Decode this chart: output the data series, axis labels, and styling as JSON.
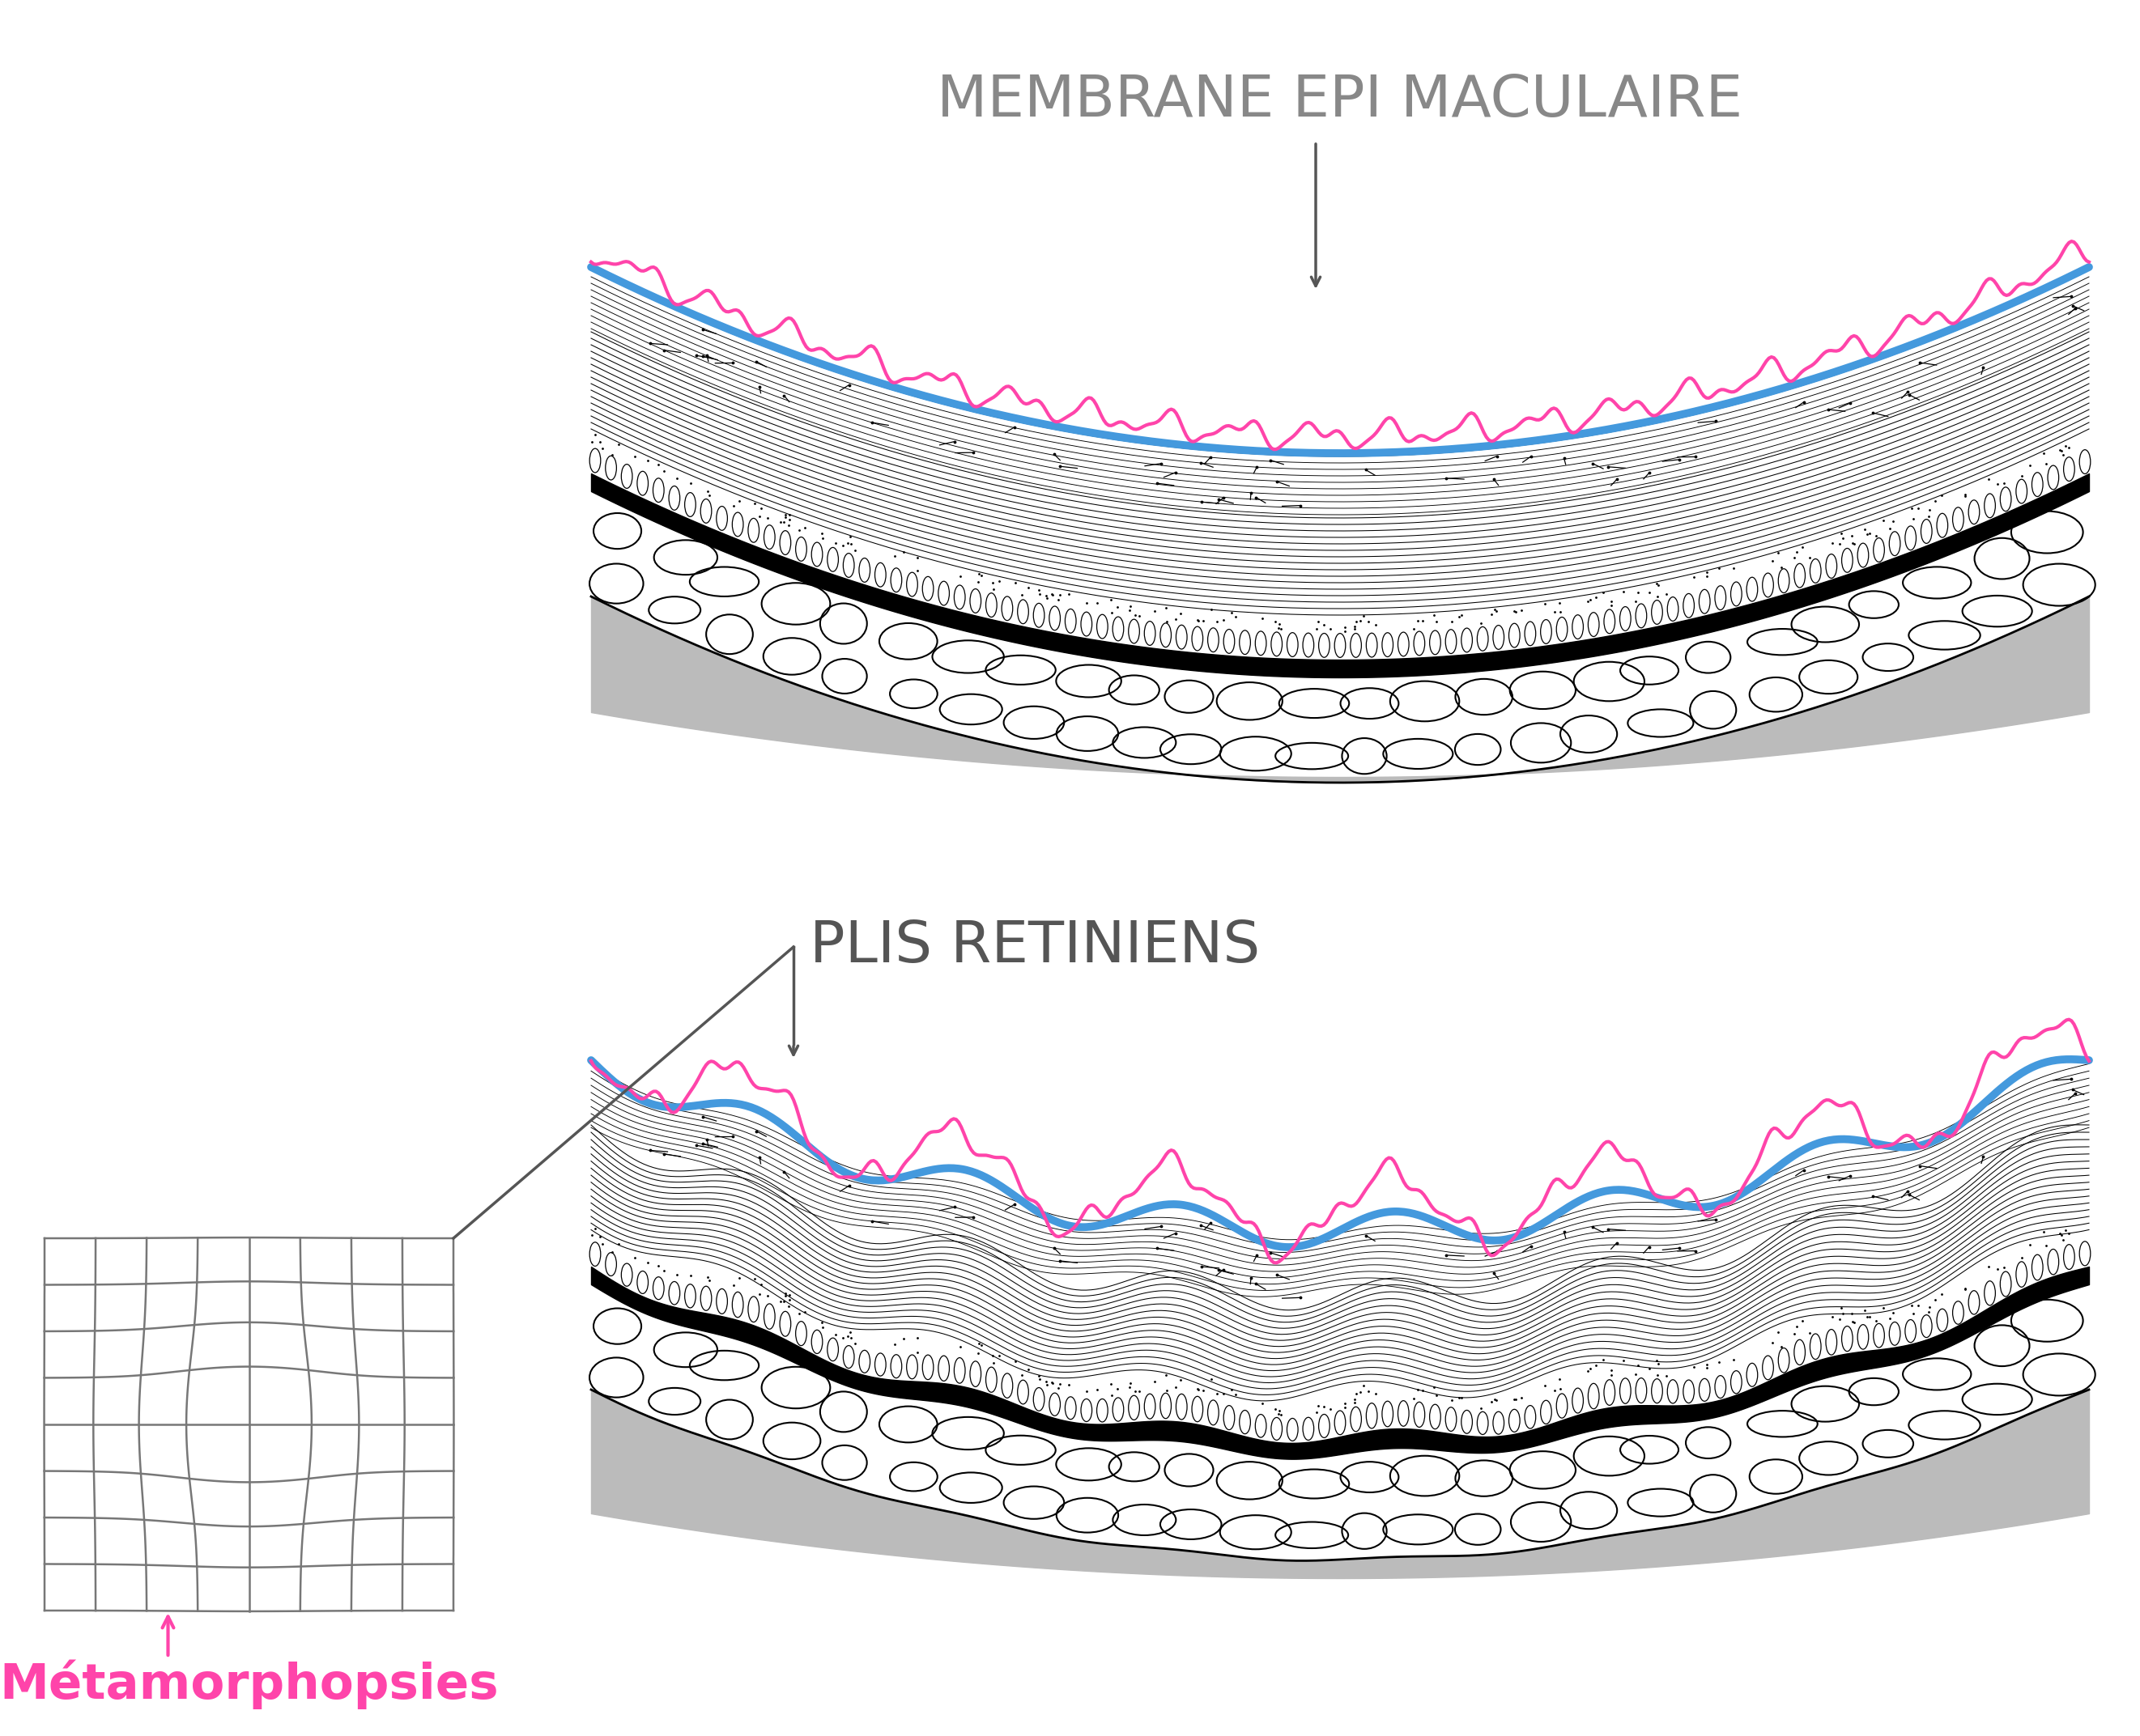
{
  "title1": "MEMBRANE EPI MACULAIRE",
  "title2": "PLIS RETINIENS",
  "label3": "Métamorphopsies",
  "title_color": "#888888",
  "magenta": "#FF44AA",
  "blue": "#4499DD",
  "black": "#000000",
  "gray_bg": "#BBBBBB",
  "dark_gray": "#555555",
  "light_gray": "#DDDDDD",
  "bg_color": "#FFFFFF"
}
